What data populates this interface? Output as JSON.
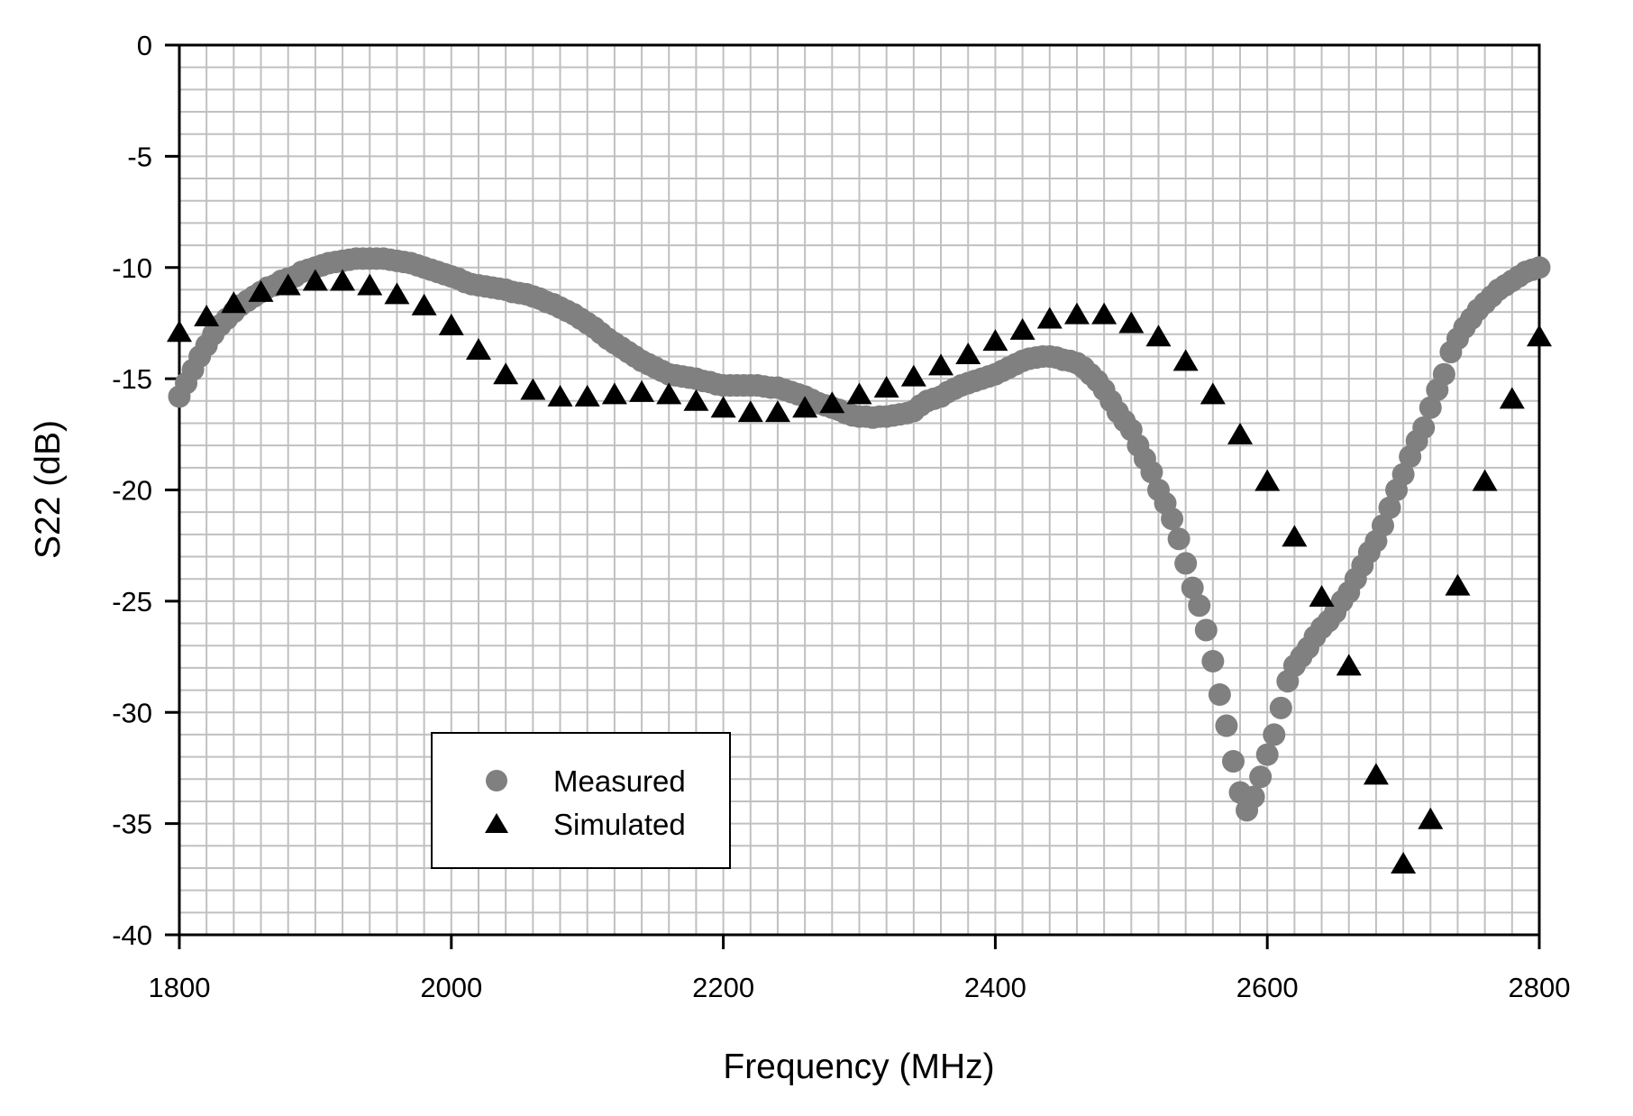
{
  "chart_data": {
    "type": "scatter",
    "title": "",
    "xlabel": "Frequency (MHz)",
    "ylabel": "S22 (dB)",
    "xlim": [
      1800,
      2800
    ],
    "ylim": [
      -40,
      0
    ],
    "x_ticks": [
      "1800",
      "2000",
      "2200",
      "2400",
      "2600",
      "2800"
    ],
    "y_ticks": [
      "0",
      "-5",
      "-10",
      "-15",
      "-20",
      "-25",
      "-30",
      "-35",
      "-40"
    ],
    "x_tick_values": [
      1800,
      2000,
      2200,
      2400,
      2600,
      2800
    ],
    "y_tick_values": [
      0,
      -5,
      -10,
      -15,
      -20,
      -25,
      -30,
      -35,
      -40
    ],
    "grid": true,
    "minor_grid_x_step": 20,
    "minor_grid_y_step": 1,
    "legend_position": "bottom-left",
    "series": [
      {
        "name": "Measured",
        "marker": "circle",
        "color": "#808080",
        "x_start": 1800,
        "x_step": 5,
        "y": [
          -15.8,
          -15.2,
          -14.6,
          -14.0,
          -13.5,
          -13.0,
          -12.6,
          -12.3,
          -12.0,
          -11.7,
          -11.5,
          -11.3,
          -11.1,
          -10.9,
          -10.8,
          -10.6,
          -10.5,
          -10.4,
          -10.2,
          -10.1,
          -10.0,
          -9.9,
          -9.8,
          -9.75,
          -9.7,
          -9.65,
          -9.6,
          -9.6,
          -9.6,
          -9.6,
          -9.6,
          -9.65,
          -9.7,
          -9.75,
          -9.8,
          -9.9,
          -10.0,
          -10.1,
          -10.2,
          -10.3,
          -10.4,
          -10.5,
          -10.65,
          -10.75,
          -10.8,
          -10.85,
          -10.9,
          -10.95,
          -11.0,
          -11.1,
          -11.15,
          -11.2,
          -11.3,
          -11.4,
          -11.55,
          -11.65,
          -11.8,
          -11.95,
          -12.1,
          -12.3,
          -12.5,
          -12.7,
          -12.95,
          -13.2,
          -13.4,
          -13.6,
          -13.8,
          -14.0,
          -14.2,
          -14.35,
          -14.5,
          -14.65,
          -14.8,
          -14.85,
          -14.9,
          -14.95,
          -15.0,
          -15.1,
          -15.15,
          -15.25,
          -15.3,
          -15.3,
          -15.3,
          -15.3,
          -15.3,
          -15.3,
          -15.35,
          -15.4,
          -15.4,
          -15.5,
          -15.6,
          -15.7,
          -15.8,
          -15.95,
          -16.1,
          -16.2,
          -16.3,
          -16.4,
          -16.55,
          -16.65,
          -16.7,
          -16.7,
          -16.75,
          -16.7,
          -16.7,
          -16.65,
          -16.6,
          -16.55,
          -16.45,
          -16.2,
          -16.0,
          -15.9,
          -15.8,
          -15.6,
          -15.45,
          -15.3,
          -15.2,
          -15.1,
          -15.0,
          -14.9,
          -14.8,
          -14.65,
          -14.5,
          -14.35,
          -14.2,
          -14.1,
          -14.05,
          -14.0,
          -14.0,
          -14.05,
          -14.15,
          -14.2,
          -14.3,
          -14.5,
          -14.8,
          -15.1,
          -15.5,
          -16.0,
          -16.5,
          -16.9,
          -17.3,
          -18.0,
          -18.6,
          -19.2,
          -20.0,
          -20.6,
          -21.3,
          -22.2,
          -23.3,
          -24.4,
          -25.2,
          -26.3,
          -27.7,
          -29.2,
          -30.6,
          -32.2,
          -33.6,
          -34.4,
          -33.8,
          -32.9,
          -31.9,
          -31.0,
          -29.8,
          -28.6,
          -27.9,
          -27.5,
          -27.1,
          -26.6,
          -26.2,
          -25.9,
          -25.5,
          -25.0,
          -24.6,
          -24.0,
          -23.4,
          -22.8,
          -22.3,
          -21.6,
          -20.8,
          -20.0,
          -19.3,
          -18.5,
          -17.8,
          -17.2,
          -16.3,
          -15.5,
          -14.8,
          -13.8,
          -13.2,
          -12.7,
          -12.3,
          -11.9,
          -11.6,
          -11.3,
          -11.0,
          -10.8,
          -10.6,
          -10.4,
          -10.2,
          -10.1,
          -10.0
        ]
      },
      {
        "name": "Simulated",
        "marker": "triangle",
        "color": "#000000",
        "x_start": 1800,
        "x_step": 20,
        "y": [
          -12.9,
          -12.2,
          -11.6,
          -11.1,
          -10.8,
          -10.6,
          -10.6,
          -10.8,
          -11.2,
          -11.7,
          -12.6,
          -13.7,
          -14.8,
          -15.5,
          -15.8,
          -15.8,
          -15.7,
          -15.6,
          -15.7,
          -16.0,
          -16.3,
          -16.5,
          -16.5,
          -16.3,
          -16.1,
          -15.7,
          -15.4,
          -14.9,
          -14.4,
          -13.9,
          -13.3,
          -12.8,
          -12.3,
          -12.1,
          -12.1,
          -12.5,
          -13.1,
          -14.2,
          -15.7,
          -17.5,
          -19.6,
          -22.1,
          -24.8,
          -27.9,
          -32.8,
          -36.8,
          -34.8,
          -24.3,
          -19.6,
          -15.9,
          -13.1
        ]
      }
    ]
  }
}
